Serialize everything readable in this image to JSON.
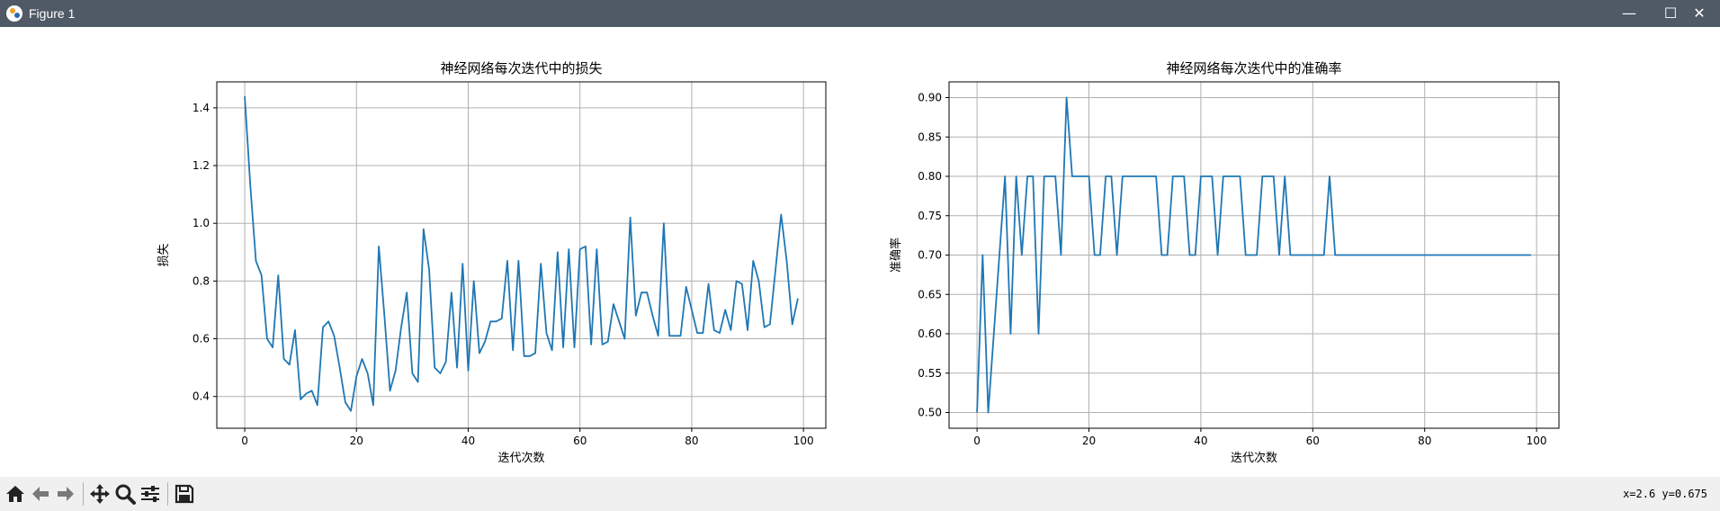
{
  "window": {
    "title": "Figure 1",
    "controls": {
      "minimize": "—",
      "maximize": "☐",
      "close": "✕"
    }
  },
  "toolbar": {
    "tools": [
      "home-icon",
      "back-icon",
      "forward-icon",
      "pan-icon",
      "zoom-icon",
      "configure-subplots-icon",
      "save-icon"
    ],
    "coordinates": "x=2.6 y=0.675"
  },
  "colors": {
    "line": "#1f77b4",
    "grid": "#b0b0b0",
    "titlebar": "#505a66",
    "toolbar": "#f0f0f0"
  },
  "chart_data": [
    {
      "type": "line",
      "title": "神经网络每次迭代中的损失",
      "xlabel": "迭代次数",
      "ylabel": "损失",
      "xlim": [
        -5,
        104
      ],
      "ylim": [
        0.29,
        1.49
      ],
      "xticks": [
        0,
        20,
        40,
        60,
        80,
        100
      ],
      "yticks": [
        0.4,
        0.6,
        0.8,
        1.0,
        1.2,
        1.4
      ],
      "ytick_labels": [
        "0.4",
        "0.6",
        "0.8",
        "1.0",
        "1.2",
        "1.4"
      ],
      "grid": true,
      "series": [
        {
          "x": [
            0,
            1,
            2,
            3,
            4,
            5,
            6,
            7,
            8,
            9,
            10,
            11,
            12,
            13,
            14,
            15,
            16,
            17,
            18,
            19,
            20,
            21,
            22,
            23,
            24,
            25,
            26,
            27,
            28,
            29,
            30,
            31,
            32,
            33,
            34,
            35,
            36,
            37,
            38,
            39,
            40,
            41,
            42,
            43,
            44,
            45,
            46,
            47,
            48,
            49,
            50,
            51,
            52,
            53,
            54,
            55,
            56,
            57,
            58,
            59,
            60,
            61,
            62,
            63,
            64,
            65,
            66,
            67,
            68,
            69,
            70,
            71,
            72,
            73,
            74,
            75,
            76,
            77,
            78,
            79,
            80,
            81,
            82,
            83,
            84,
            85,
            86,
            87,
            88,
            89,
            90,
            91,
            92,
            93,
            94,
            95,
            96,
            97,
            98,
            99
          ],
          "y": [
            1.44,
            1.13,
            0.87,
            0.82,
            0.6,
            0.57,
            0.82,
            0.53,
            0.51,
            0.63,
            0.39,
            0.41,
            0.42,
            0.37,
            0.64,
            0.66,
            0.61,
            0.5,
            0.38,
            0.35,
            0.47,
            0.53,
            0.48,
            0.37,
            0.92,
            0.68,
            0.42,
            0.49,
            0.64,
            0.76,
            0.48,
            0.45,
            0.98,
            0.84,
            0.5,
            0.48,
            0.52,
            0.76,
            0.5,
            0.86,
            0.49,
            0.8,
            0.55,
            0.59,
            0.66,
            0.66,
            0.67,
            0.87,
            0.56,
            0.87,
            0.54,
            0.54,
            0.55,
            0.86,
            0.62,
            0.56,
            0.9,
            0.57,
            0.91,
            0.57,
            0.91,
            0.92,
            0.58,
            0.91,
            0.58,
            0.59,
            0.72,
            0.66,
            0.6,
            1.02,
            0.68,
            0.76,
            0.76,
            0.68,
            0.61,
            1.0,
            0.61,
            0.61,
            0.61,
            0.78,
            0.7,
            0.62,
            0.62,
            0.79,
            0.63,
            0.62,
            0.7,
            0.63,
            0.8,
            0.79,
            0.63,
            0.87,
            0.8,
            0.64,
            0.65,
            0.84,
            1.03,
            0.87,
            0.65,
            0.74
          ]
        }
      ]
    },
    {
      "type": "line",
      "title": "神经网络每次迭代中的准确率",
      "xlabel": "迭代次数",
      "ylabel": "准确率",
      "xlim": [
        -5,
        104
      ],
      "ylim": [
        0.48,
        0.92
      ],
      "xticks": [
        0,
        20,
        40,
        60,
        80,
        100
      ],
      "yticks": [
        0.5,
        0.55,
        0.6,
        0.65,
        0.7,
        0.75,
        0.8,
        0.85,
        0.9
      ],
      "ytick_labels": [
        "0.50",
        "0.55",
        "0.60",
        "0.65",
        "0.70",
        "0.75",
        "0.80",
        "0.85",
        "0.90"
      ],
      "grid": true,
      "series": [
        {
          "x": [
            0,
            1,
            2,
            3,
            4,
            5,
            6,
            7,
            8,
            9,
            10,
            11,
            12,
            13,
            14,
            15,
            16,
            17,
            18,
            19,
            20,
            21,
            22,
            23,
            24,
            25,
            26,
            27,
            28,
            29,
            30,
            31,
            32,
            33,
            34,
            35,
            36,
            37,
            38,
            39,
            40,
            41,
            42,
            43,
            44,
            45,
            46,
            47,
            48,
            49,
            50,
            51,
            52,
            53,
            54,
            55,
            56,
            57,
            58,
            59,
            60,
            61,
            62,
            63,
            64,
            65,
            66,
            67,
            68,
            69,
            70,
            71,
            72,
            73,
            74,
            75,
            76,
            77,
            78,
            79,
            80,
            81,
            82,
            83,
            84,
            85,
            86,
            87,
            88,
            89,
            90,
            91,
            92,
            93,
            94,
            95,
            96,
            97,
            98,
            99
          ],
          "y": [
            0.5,
            0.7,
            0.5,
            0.6,
            0.7,
            0.8,
            0.6,
            0.8,
            0.7,
            0.8,
            0.8,
            0.6,
            0.8,
            0.8,
            0.8,
            0.7,
            0.9,
            0.8,
            0.8,
            0.8,
            0.8,
            0.7,
            0.7,
            0.8,
            0.8,
            0.7,
            0.8,
            0.8,
            0.8,
            0.8,
            0.8,
            0.8,
            0.8,
            0.7,
            0.7,
            0.8,
            0.8,
            0.8,
            0.7,
            0.7,
            0.8,
            0.8,
            0.8,
            0.7,
            0.8,
            0.8,
            0.8,
            0.8,
            0.7,
            0.7,
            0.7,
            0.8,
            0.8,
            0.8,
            0.7,
            0.8,
            0.7,
            0.7,
            0.7,
            0.7,
            0.7,
            0.7,
            0.7,
            0.8,
            0.7,
            0.7,
            0.7,
            0.7,
            0.7,
            0.7,
            0.7,
            0.7,
            0.7,
            0.7,
            0.7,
            0.7,
            0.7,
            0.7,
            0.7,
            0.7,
            0.7,
            0.7,
            0.7,
            0.7,
            0.7,
            0.7,
            0.7,
            0.7,
            0.7,
            0.7,
            0.7,
            0.7,
            0.7,
            0.7,
            0.7,
            0.7,
            0.7,
            0.7,
            0.7,
            0.7
          ]
        }
      ]
    }
  ]
}
